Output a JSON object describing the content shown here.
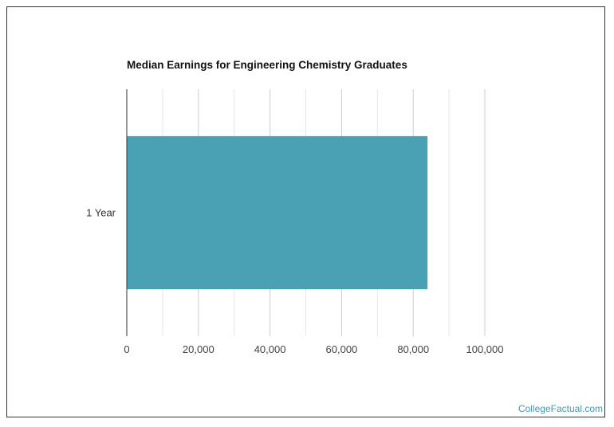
{
  "chart_data": {
    "type": "bar",
    "orientation": "horizontal",
    "title": "Median Earnings for Engineering Chemistry Graduates",
    "categories": [
      "1 Year"
    ],
    "values": [
      84000
    ],
    "xlim": [
      0,
      100000
    ],
    "xticks": [
      0,
      20000,
      40000,
      60000,
      80000,
      100000
    ],
    "xtick_labels": [
      "0",
      "20,000",
      "40,000",
      "60,000",
      "80,000",
      "100,000"
    ],
    "grid": true,
    "bar_color": "#4aa1b4"
  },
  "footer": {
    "credit": "CollegeFactual.com"
  }
}
